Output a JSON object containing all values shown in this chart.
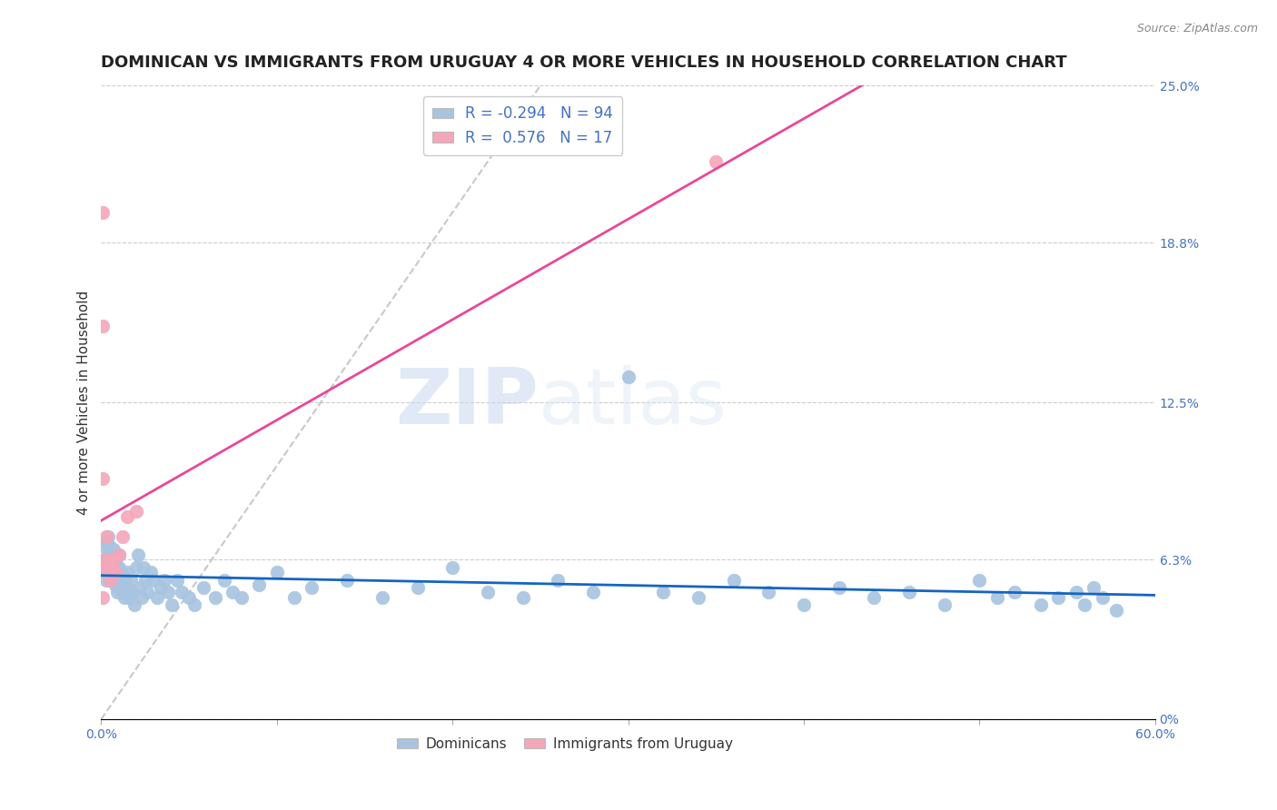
{
  "title": "DOMINICAN VS IMMIGRANTS FROM URUGUAY 4 OR MORE VEHICLES IN HOUSEHOLD CORRELATION CHART",
  "source": "Source: ZipAtlas.com",
  "ylabel": "4 or more Vehicles in Household",
  "xmin": 0.0,
  "xmax": 0.6,
  "ymin": 0.0,
  "ymax": 0.25,
  "y_tick_labels_right": [
    "0%",
    "6.3%",
    "12.5%",
    "18.8%",
    "25.0%"
  ],
  "y_tick_vals_right": [
    0.0,
    0.063,
    0.125,
    0.188,
    0.25
  ],
  "dominican_color": "#a8c4e0",
  "uruguay_color": "#f4a7b9",
  "dominican_line_color": "#1565c0",
  "uruguay_line_color": "#e8489a",
  "diag_line_color": "#bbbbbb",
  "R_dominican": -0.294,
  "N_dominican": 94,
  "R_uruguay": 0.576,
  "N_uruguay": 17,
  "title_fontsize": 13,
  "axis_label_fontsize": 11,
  "tick_fontsize": 10,
  "legend_fontsize": 12,
  "background_color": "#ffffff",
  "grid_color": "#cccccc",
  "watermark_zip": "ZIP",
  "watermark_atlas": "atlas",
  "dom_x": [
    0.001,
    0.002,
    0.002,
    0.003,
    0.003,
    0.003,
    0.004,
    0.004,
    0.004,
    0.005,
    0.005,
    0.005,
    0.006,
    0.006,
    0.006,
    0.007,
    0.007,
    0.007,
    0.008,
    0.008,
    0.008,
    0.009,
    0.009,
    0.01,
    0.01,
    0.01,
    0.011,
    0.011,
    0.012,
    0.012,
    0.013,
    0.013,
    0.014,
    0.015,
    0.015,
    0.016,
    0.017,
    0.018,
    0.019,
    0.02,
    0.021,
    0.022,
    0.023,
    0.024,
    0.025,
    0.026,
    0.028,
    0.03,
    0.032,
    0.034,
    0.036,
    0.038,
    0.04,
    0.043,
    0.046,
    0.05,
    0.053,
    0.058,
    0.065,
    0.07,
    0.075,
    0.08,
    0.09,
    0.1,
    0.11,
    0.12,
    0.14,
    0.16,
    0.18,
    0.2,
    0.22,
    0.24,
    0.26,
    0.28,
    0.3,
    0.32,
    0.34,
    0.36,
    0.38,
    0.4,
    0.42,
    0.44,
    0.46,
    0.48,
    0.5,
    0.51,
    0.52,
    0.535,
    0.545,
    0.555,
    0.56,
    0.565,
    0.57,
    0.578
  ],
  "dom_y": [
    0.062,
    0.058,
    0.068,
    0.055,
    0.063,
    0.07,
    0.06,
    0.065,
    0.072,
    0.058,
    0.063,
    0.068,
    0.055,
    0.06,
    0.065,
    0.058,
    0.062,
    0.067,
    0.053,
    0.058,
    0.063,
    0.05,
    0.06,
    0.055,
    0.06,
    0.065,
    0.052,
    0.058,
    0.05,
    0.057,
    0.048,
    0.055,
    0.053,
    0.05,
    0.058,
    0.048,
    0.055,
    0.05,
    0.045,
    0.06,
    0.065,
    0.052,
    0.048,
    0.06,
    0.055,
    0.05,
    0.058,
    0.055,
    0.048,
    0.052,
    0.055,
    0.05,
    0.045,
    0.055,
    0.05,
    0.048,
    0.045,
    0.052,
    0.048,
    0.055,
    0.05,
    0.048,
    0.053,
    0.058,
    0.048,
    0.052,
    0.055,
    0.048,
    0.052,
    0.06,
    0.05,
    0.048,
    0.055,
    0.05,
    0.135,
    0.05,
    0.048,
    0.055,
    0.05,
    0.045,
    0.052,
    0.048,
    0.05,
    0.045,
    0.055,
    0.048,
    0.05,
    0.045,
    0.048,
    0.05,
    0.045,
    0.052,
    0.048,
    0.043
  ],
  "uru_x": [
    0.001,
    0.001,
    0.001,
    0.001,
    0.002,
    0.003,
    0.004,
    0.005,
    0.006,
    0.007,
    0.008,
    0.01,
    0.012,
    0.015,
    0.02,
    0.35,
    0.001
  ],
  "uru_y": [
    0.2,
    0.155,
    0.095,
    0.06,
    0.063,
    0.072,
    0.062,
    0.055,
    0.06,
    0.063,
    0.058,
    0.065,
    0.072,
    0.08,
    0.082,
    0.22,
    0.048
  ]
}
